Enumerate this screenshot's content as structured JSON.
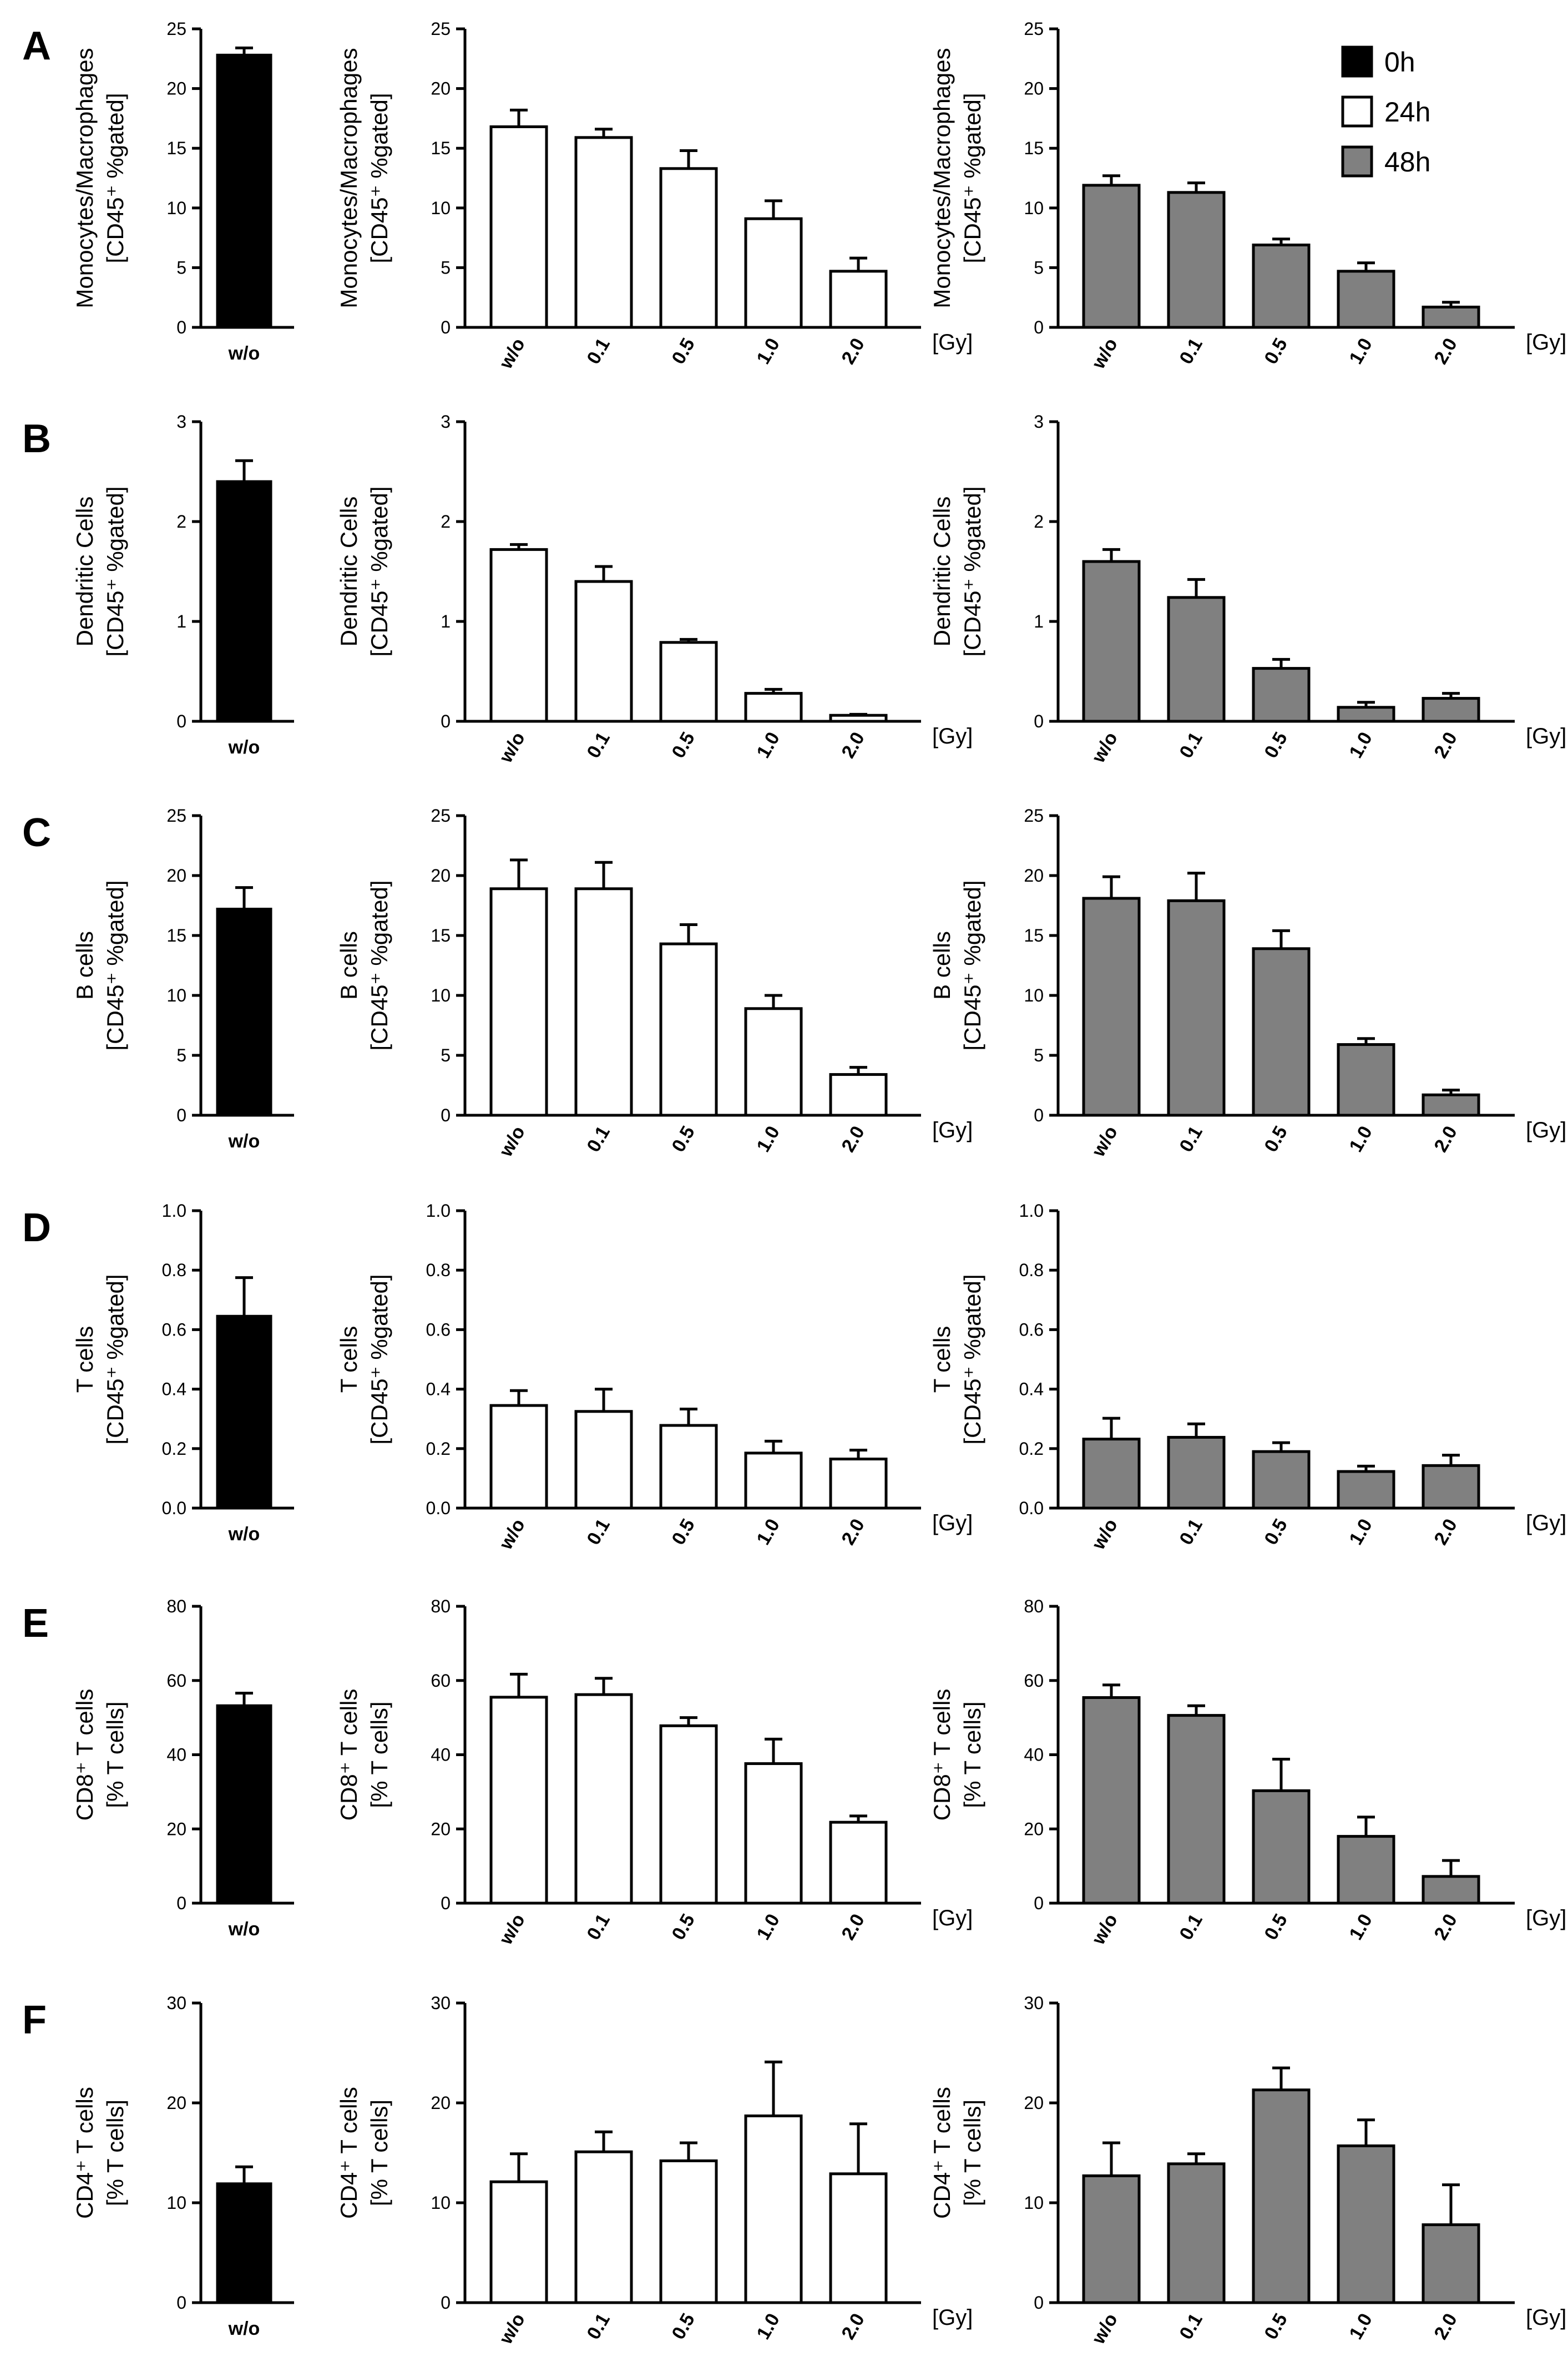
{
  "legend": [
    {
      "label": "0h",
      "color": "#000000"
    },
    {
      "label": "24h",
      "color": "#ffffff"
    },
    {
      "label": "48h",
      "color": "#808080"
    }
  ],
  "x_unit": "[Gy]",
  "chart_data": [
    {
      "panel": "A",
      "column": "0h",
      "type": "bar",
      "ylabel": [
        "Monocytes/Macrophages",
        "[CD45⁺ %gated]"
      ],
      "ylim": [
        0,
        25
      ],
      "yticks": [
        "0",
        "5",
        "10",
        "15",
        "20",
        "25"
      ],
      "categories": [
        "w/o"
      ],
      "values": [
        22.8
      ],
      "errors": [
        0.6
      ],
      "color": "#000000"
    },
    {
      "panel": "A",
      "column": "24h",
      "type": "bar",
      "ylabel": [
        "Monocytes/Macrophages",
        "[CD45⁺ %gated]"
      ],
      "ylim": [
        0,
        25
      ],
      "yticks": [
        "0",
        "5",
        "10",
        "15",
        "20",
        "25"
      ],
      "categories": [
        "w/o",
        "0.1",
        "0.5",
        "1.0",
        "2.0"
      ],
      "values": [
        16.8,
        15.9,
        13.3,
        9.1,
        4.7
      ],
      "errors": [
        1.4,
        0.7,
        1.5,
        1.5,
        1.1
      ],
      "color": "#ffffff"
    },
    {
      "panel": "A",
      "column": "48h",
      "type": "bar",
      "ylabel": [
        "Monocytes/Macrophages",
        "[CD45⁺ %gated]"
      ],
      "ylim": [
        0,
        25
      ],
      "yticks": [
        "0",
        "5",
        "10",
        "15",
        "20",
        "25"
      ],
      "categories": [
        "w/o",
        "0.1",
        "0.5",
        "1.0",
        "2.0"
      ],
      "values": [
        11.9,
        11.3,
        6.9,
        4.7,
        1.7
      ],
      "errors": [
        0.8,
        0.8,
        0.5,
        0.7,
        0.4
      ],
      "color": "#808080"
    },
    {
      "panel": "B",
      "column": "0h",
      "type": "bar",
      "ylabel": [
        "Dendritic Cells",
        "[CD45⁺ %gated]"
      ],
      "ylim": [
        0,
        3
      ],
      "yticks": [
        "0",
        "1",
        "2",
        "3"
      ],
      "categories": [
        "w/o"
      ],
      "values": [
        2.4
      ],
      "errors": [
        0.21
      ],
      "color": "#000000"
    },
    {
      "panel": "B",
      "column": "24h",
      "type": "bar",
      "ylabel": [
        "Dendritic Cells",
        "[CD45⁺ %gated]"
      ],
      "ylim": [
        0,
        3
      ],
      "yticks": [
        "0",
        "1",
        "2",
        "3"
      ],
      "categories": [
        "w/o",
        "0.1",
        "0.5",
        "1.0",
        "2.0"
      ],
      "values": [
        1.72,
        1.4,
        0.79,
        0.28,
        0.06
      ],
      "errors": [
        0.05,
        0.15,
        0.03,
        0.04,
        0.01
      ],
      "color": "#ffffff"
    },
    {
      "panel": "B",
      "column": "48h",
      "type": "bar",
      "ylabel": [
        "Dendritic Cells",
        "[CD45⁺ %gated]"
      ],
      "ylim": [
        0,
        3
      ],
      "yticks": [
        "0",
        "1",
        "2",
        "3"
      ],
      "categories": [
        "w/o",
        "0.1",
        "0.5",
        "1.0",
        "2.0"
      ],
      "values": [
        1.6,
        1.24,
        0.53,
        0.14,
        0.23
      ],
      "errors": [
        0.12,
        0.18,
        0.09,
        0.05,
        0.05
      ],
      "color": "#808080"
    },
    {
      "panel": "C",
      "column": "0h",
      "type": "bar",
      "ylabel": [
        "B cells",
        "[CD45⁺ %gated]"
      ],
      "ylim": [
        0,
        25
      ],
      "yticks": [
        "0",
        "5",
        "10",
        "15",
        "20",
        "25"
      ],
      "categories": [
        "w/o"
      ],
      "values": [
        17.2
      ],
      "errors": [
        1.8
      ],
      "color": "#000000"
    },
    {
      "panel": "C",
      "column": "24h",
      "type": "bar",
      "ylabel": [
        "B cells",
        "[CD45⁺ %gated]"
      ],
      "ylim": [
        0,
        25
      ],
      "yticks": [
        "0",
        "5",
        "10",
        "15",
        "20",
        "25"
      ],
      "categories": [
        "w/o",
        "0.1",
        "0.5",
        "1.0",
        "2.0"
      ],
      "values": [
        18.9,
        18.9,
        14.3,
        8.9,
        3.4
      ],
      "errors": [
        2.4,
        2.2,
        1.6,
        1.1,
        0.6
      ],
      "color": "#ffffff"
    },
    {
      "panel": "C",
      "column": "48h",
      "type": "bar",
      "ylabel": [
        "B cells",
        "[CD45⁺ %gated]"
      ],
      "ylim": [
        0,
        25
      ],
      "yticks": [
        "0",
        "5",
        "10",
        "15",
        "20",
        "25"
      ],
      "categories": [
        "w/o",
        "0.1",
        "0.5",
        "1.0",
        "2.0"
      ],
      "values": [
        18.1,
        17.9,
        13.9,
        5.9,
        1.7
      ],
      "errors": [
        1.8,
        2.3,
        1.5,
        0.5,
        0.4
      ],
      "color": "#808080"
    },
    {
      "panel": "D",
      "column": "0h",
      "type": "bar",
      "ylabel": [
        "T cells",
        "[CD45⁺ %gated]"
      ],
      "ylim": [
        0,
        1.0
      ],
      "yticks": [
        "0.0",
        "0.2",
        "0.4",
        "0.6",
        "0.8",
        "1.0"
      ],
      "categories": [
        "w/o"
      ],
      "values": [
        0.645
      ],
      "errors": [
        0.13
      ],
      "color": "#000000"
    },
    {
      "panel": "D",
      "column": "24h",
      "type": "bar",
      "ylabel": [
        "T cells",
        "[CD45⁺ %gated]"
      ],
      "ylim": [
        0,
        1.0
      ],
      "yticks": [
        "0.0",
        "0.2",
        "0.4",
        "0.6",
        "0.8",
        "1.0"
      ],
      "categories": [
        "w/o",
        "0.1",
        "0.5",
        "1.0",
        "2.0"
      ],
      "values": [
        0.345,
        0.325,
        0.278,
        0.185,
        0.165
      ],
      "errors": [
        0.05,
        0.075,
        0.055,
        0.04,
        0.03
      ],
      "color": "#ffffff"
    },
    {
      "panel": "D",
      "column": "48h",
      "type": "bar",
      "ylabel": [
        "T cells",
        "[CD45⁺ %gated]"
      ],
      "ylim": [
        0,
        1.0
      ],
      "yticks": [
        "0.0",
        "0.2",
        "0.4",
        "0.6",
        "0.8",
        "1.0"
      ],
      "categories": [
        "w/o",
        "0.1",
        "0.5",
        "1.0",
        "2.0"
      ],
      "values": [
        0.232,
        0.238,
        0.19,
        0.123,
        0.143
      ],
      "errors": [
        0.07,
        0.045,
        0.03,
        0.018,
        0.035
      ],
      "color": "#808080"
    },
    {
      "panel": "E",
      "column": "0h",
      "type": "bar",
      "ylabel": [
        "CD8⁺ T cells",
        "[% T cells]"
      ],
      "ylim": [
        0,
        80
      ],
      "yticks": [
        "0",
        "20",
        "40",
        "60",
        "80"
      ],
      "categories": [
        "w/o"
      ],
      "values": [
        53.2
      ],
      "errors": [
        3.4
      ],
      "color": "#000000"
    },
    {
      "panel": "E",
      "column": "24h",
      "type": "bar",
      "ylabel": [
        "CD8⁺ T cells",
        "[% T cells]"
      ],
      "ylim": [
        0,
        80
      ],
      "yticks": [
        "0",
        "20",
        "40",
        "60",
        "80"
      ],
      "categories": [
        "w/o",
        "0.1",
        "0.5",
        "1.0",
        "2.0"
      ],
      "values": [
        55.5,
        56.2,
        47.8,
        37.6,
        21.8
      ],
      "errors": [
        6.2,
        4.4,
        2.2,
        6.6,
        1.7
      ],
      "color": "#ffffff"
    },
    {
      "panel": "E",
      "column": "48h",
      "type": "bar",
      "ylabel": [
        "CD8⁺ T cells",
        "[% T cells]"
      ],
      "ylim": [
        0,
        80
      ],
      "yticks": [
        "0",
        "20",
        "40",
        "60",
        "80"
      ],
      "categories": [
        "w/o",
        "0.1",
        "0.5",
        "1.0",
        "2.0"
      ],
      "values": [
        55.4,
        50.6,
        30.3,
        18.0,
        7.2
      ],
      "errors": [
        3.4,
        2.6,
        8.5,
        5.2,
        4.3
      ],
      "color": "#808080"
    },
    {
      "panel": "F",
      "column": "0h",
      "type": "bar",
      "ylabel": [
        "CD4⁺ T cells",
        "[% T cells]"
      ],
      "ylim": [
        0,
        30
      ],
      "yticks": [
        "0",
        "10",
        "20",
        "30"
      ],
      "categories": [
        "w/o"
      ],
      "values": [
        11.9
      ],
      "errors": [
        1.7
      ],
      "color": "#000000"
    },
    {
      "panel": "F",
      "column": "24h",
      "type": "bar",
      "ylabel": [
        "CD4⁺ T cells",
        "[% T cells]"
      ],
      "ylim": [
        0,
        30
      ],
      "yticks": [
        "0",
        "10",
        "20",
        "30"
      ],
      "categories": [
        "w/o",
        "0.1",
        "0.5",
        "1.0",
        "2.0"
      ],
      "values": [
        12.1,
        15.1,
        14.2,
        18.7,
        12.9
      ],
      "errors": [
        2.8,
        2.0,
        1.8,
        5.4,
        5.0
      ],
      "color": "#ffffff"
    },
    {
      "panel": "F",
      "column": "48h",
      "type": "bar",
      "ylabel": [
        "CD4⁺ T cells",
        "[% T cells]"
      ],
      "ylim": [
        0,
        30
      ],
      "yticks": [
        "0",
        "10",
        "20",
        "30"
      ],
      "categories": [
        "w/o",
        "0.1",
        "0.5",
        "1.0",
        "2.0"
      ],
      "values": [
        12.7,
        13.9,
        21.3,
        15.7,
        7.8
      ],
      "errors": [
        3.3,
        1.0,
        2.2,
        2.6,
        4.0
      ],
      "color": "#808080"
    }
  ]
}
